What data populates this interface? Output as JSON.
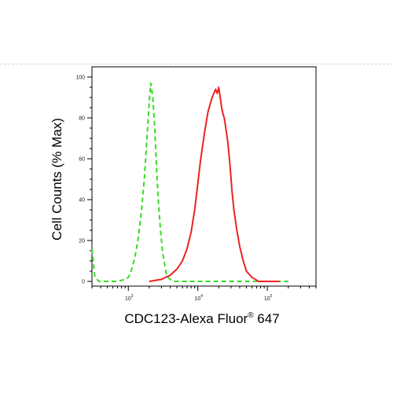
{
  "chart_data": {
    "type": "line",
    "title": "",
    "xlabel": "CDC123-Alexa Fluor",
    "xlabel_superscript": "®",
    "xlabel_suffix": " 647",
    "ylabel": "Cell Counts (% Max)",
    "x_scale": "log",
    "xlim": [
      300,
      500000
    ],
    "ylim": [
      0,
      100
    ],
    "yticks": [
      0,
      20,
      40,
      60,
      80,
      100
    ],
    "ytick_labels": [
      "0",
      "20",
      "40",
      "60",
      "80",
      "100"
    ],
    "xticks": [
      1000,
      10000,
      100000
    ],
    "xtick_labels": [
      {
        "base": "10",
        "exp": "3"
      },
      {
        "base": "10",
        "exp": "4"
      },
      {
        "base": "10",
        "exp": "5"
      }
    ],
    "grid": false,
    "legend": "none",
    "series": [
      {
        "style": "dashed",
        "color": "#33dd22",
        "x": [
          300,
          330,
          380,
          500,
          700,
          900,
          1000,
          1100,
          1250,
          1400,
          1550,
          1700,
          1850,
          2000,
          2100,
          2250,
          2400,
          2550,
          2700,
          2900,
          3100,
          3300,
          3500,
          3700,
          4000,
          4500,
          5000,
          6000,
          8000,
          15000,
          30000,
          60000,
          100000,
          200000
        ],
        "y": [
          16,
          2,
          0,
          0,
          0,
          1,
          2,
          5,
          12,
          22,
          35,
          50,
          70,
          88,
          97,
          90,
          75,
          55,
          40,
          25,
          15,
          9,
          4,
          2,
          1,
          0,
          0,
          0,
          0,
          0,
          0,
          0,
          0,
          0
        ]
      },
      {
        "style": "solid",
        "color": "#ee2222",
        "x": [
          2000,
          3000,
          4000,
          5000,
          6000,
          7000,
          8000,
          9000,
          10000,
          11000,
          12500,
          14000,
          16000,
          18000,
          19000,
          20000,
          21000,
          22000,
          23000,
          24000,
          25000,
          27000,
          29000,
          31000,
          33000,
          36000,
          40000,
          45000,
          50000,
          60000,
          75000,
          100000,
          150000
        ],
        "y": [
          0,
          1,
          3,
          6,
          10,
          16,
          24,
          35,
          48,
          60,
          73,
          83,
          90,
          94,
          92,
          95,
          90,
          85,
          82,
          80,
          76,
          68,
          57,
          44,
          35,
          26,
          17,
          10,
          5,
          2,
          0,
          0,
          0
        ]
      }
    ]
  }
}
